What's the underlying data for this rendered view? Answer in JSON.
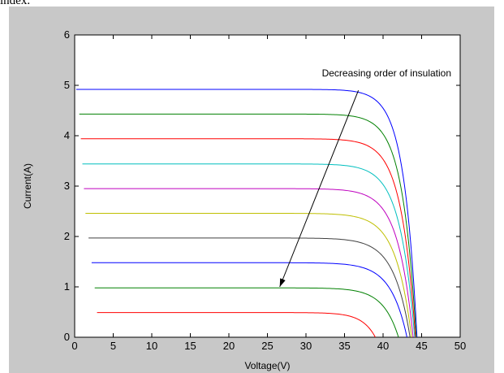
{
  "caption": {
    "text": "index."
  },
  "chart_data": {
    "type": "line",
    "title": "",
    "xlabel": "Voltage(V)",
    "ylabel": "Current(A)",
    "xlim": [
      0,
      50
    ],
    "ylim": [
      0,
      6
    ],
    "xticks": [
      "0",
      "5",
      "10",
      "15",
      "20",
      "25",
      "30",
      "35",
      "40",
      "45",
      "50"
    ],
    "yticks": [
      "0",
      "1",
      "2",
      "3",
      "4",
      "5",
      "6"
    ],
    "grid": false,
    "legend": "none",
    "annotation": {
      "text": "Decreasing order of insulation",
      "arrow_from": [
        36.8,
        4.9
      ],
      "arrow_to": [
        26.6,
        1.0
      ]
    },
    "series": [
      {
        "color": "#0000ff",
        "isc": 4.92,
        "voc": 44.4,
        "x_start": 0.2,
        "knee_v": 35.0
      },
      {
        "color": "#008000",
        "isc": 4.43,
        "voc": 44.3,
        "x_start": 0.6,
        "knee_v": 34.5
      },
      {
        "color": "#ff0000",
        "isc": 3.94,
        "voc": 44.2,
        "x_start": 0.8,
        "knee_v": 34.0
      },
      {
        "color": "#00bfbf",
        "isc": 3.44,
        "voc": 44.1,
        "x_start": 1.0,
        "knee_v": 33.5
      },
      {
        "color": "#bf00bf",
        "isc": 2.95,
        "voc": 43.9,
        "x_start": 1.2,
        "knee_v": 33.0
      },
      {
        "color": "#bfbf00",
        "isc": 2.46,
        "voc": 43.7,
        "x_start": 1.4,
        "knee_v": 32.5
      },
      {
        "color": "#404040",
        "isc": 1.97,
        "voc": 43.5,
        "x_start": 1.8,
        "knee_v": 32.0
      },
      {
        "color": "#0000ff",
        "isc": 1.48,
        "voc": 43.1,
        "x_start": 2.2,
        "knee_v": 31.5
      },
      {
        "color": "#008000",
        "isc": 0.98,
        "voc": 42.0,
        "x_start": 2.6,
        "knee_v": 31.0
      },
      {
        "color": "#ff0000",
        "isc": 0.49,
        "voc": 39.0,
        "x_start": 2.9,
        "knee_v": 29.5
      }
    ]
  }
}
